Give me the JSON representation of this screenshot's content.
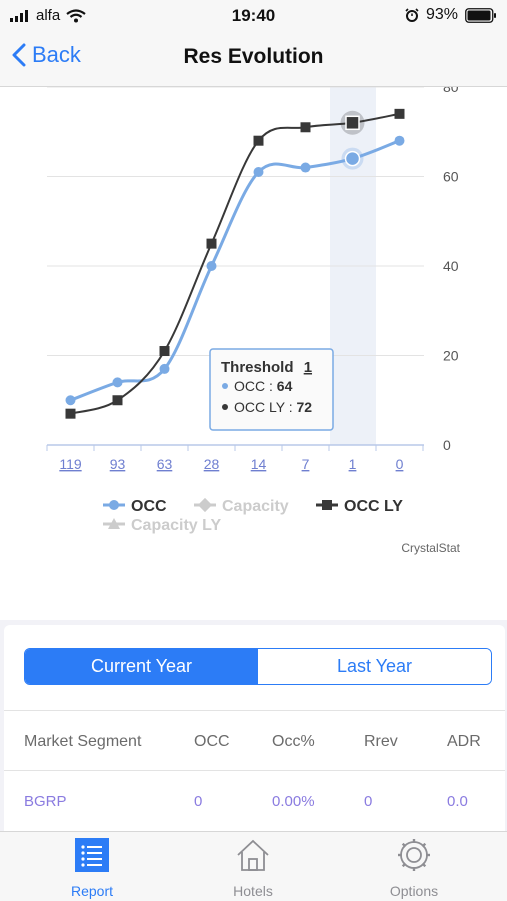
{
  "status_bar": {
    "carrier": "alfa",
    "time": "19:40",
    "battery": "93%"
  },
  "nav": {
    "back_label": "Back",
    "title": "Res Evolution"
  },
  "chart_data": {
    "type": "line",
    "categories": [
      "119",
      "93",
      "63",
      "28",
      "14",
      "7",
      "1",
      "0"
    ],
    "series": [
      {
        "name": "OCC",
        "color": "#7aaae4",
        "values": [
          10,
          14,
          17,
          40,
          61,
          62,
          64,
          68
        ]
      },
      {
        "name": "OCC LY",
        "color": "#383838",
        "values": [
          7,
          10,
          21,
          45,
          68,
          71,
          72,
          74
        ]
      }
    ],
    "legend": [
      {
        "name": "OCC",
        "active": true,
        "marker": "circle",
        "color": "#7aaae4"
      },
      {
        "name": "Capacity",
        "active": false,
        "marker": "diamond",
        "color": "#cccccc"
      },
      {
        "name": "OCC LY",
        "active": true,
        "marker": "square",
        "color": "#383838"
      },
      {
        "name": "Capacity LY",
        "active": false,
        "marker": "triangle",
        "color": "#cccccc"
      }
    ],
    "y_ticks": [
      "0",
      "20",
      "40",
      "60",
      "80"
    ],
    "ylim": [
      0,
      80
    ],
    "axis_side": "right",
    "grid": true,
    "highlight_category": "1",
    "tooltip": {
      "title": "Threshold",
      "category": "1",
      "rows": [
        {
          "label": "OCC",
          "value": "64"
        },
        {
          "label": "OCC LY",
          "value": "72"
        }
      ]
    },
    "credit": "CrystalStat"
  },
  "segment": {
    "current_label": "Current Year",
    "last_label": "Last Year",
    "selected": "current"
  },
  "table": {
    "headers": [
      "Market Segment",
      "OCC",
      "Occ%",
      "Rrev",
      "ADR"
    ],
    "rows": [
      [
        "BGRP",
        "0",
        "0.00%",
        "0",
        "0.0"
      ]
    ]
  },
  "tabs": [
    {
      "label": "Report",
      "icon": "list-icon",
      "active": true
    },
    {
      "label": "Hotels",
      "icon": "house-icon",
      "active": false
    },
    {
      "label": "Options",
      "icon": "gear-icon",
      "active": false
    }
  ],
  "colors": {
    "accent": "#2c7cf6",
    "occ": "#7aaae4",
    "occ_ly": "#383838",
    "table_value": "#8a7be0"
  }
}
